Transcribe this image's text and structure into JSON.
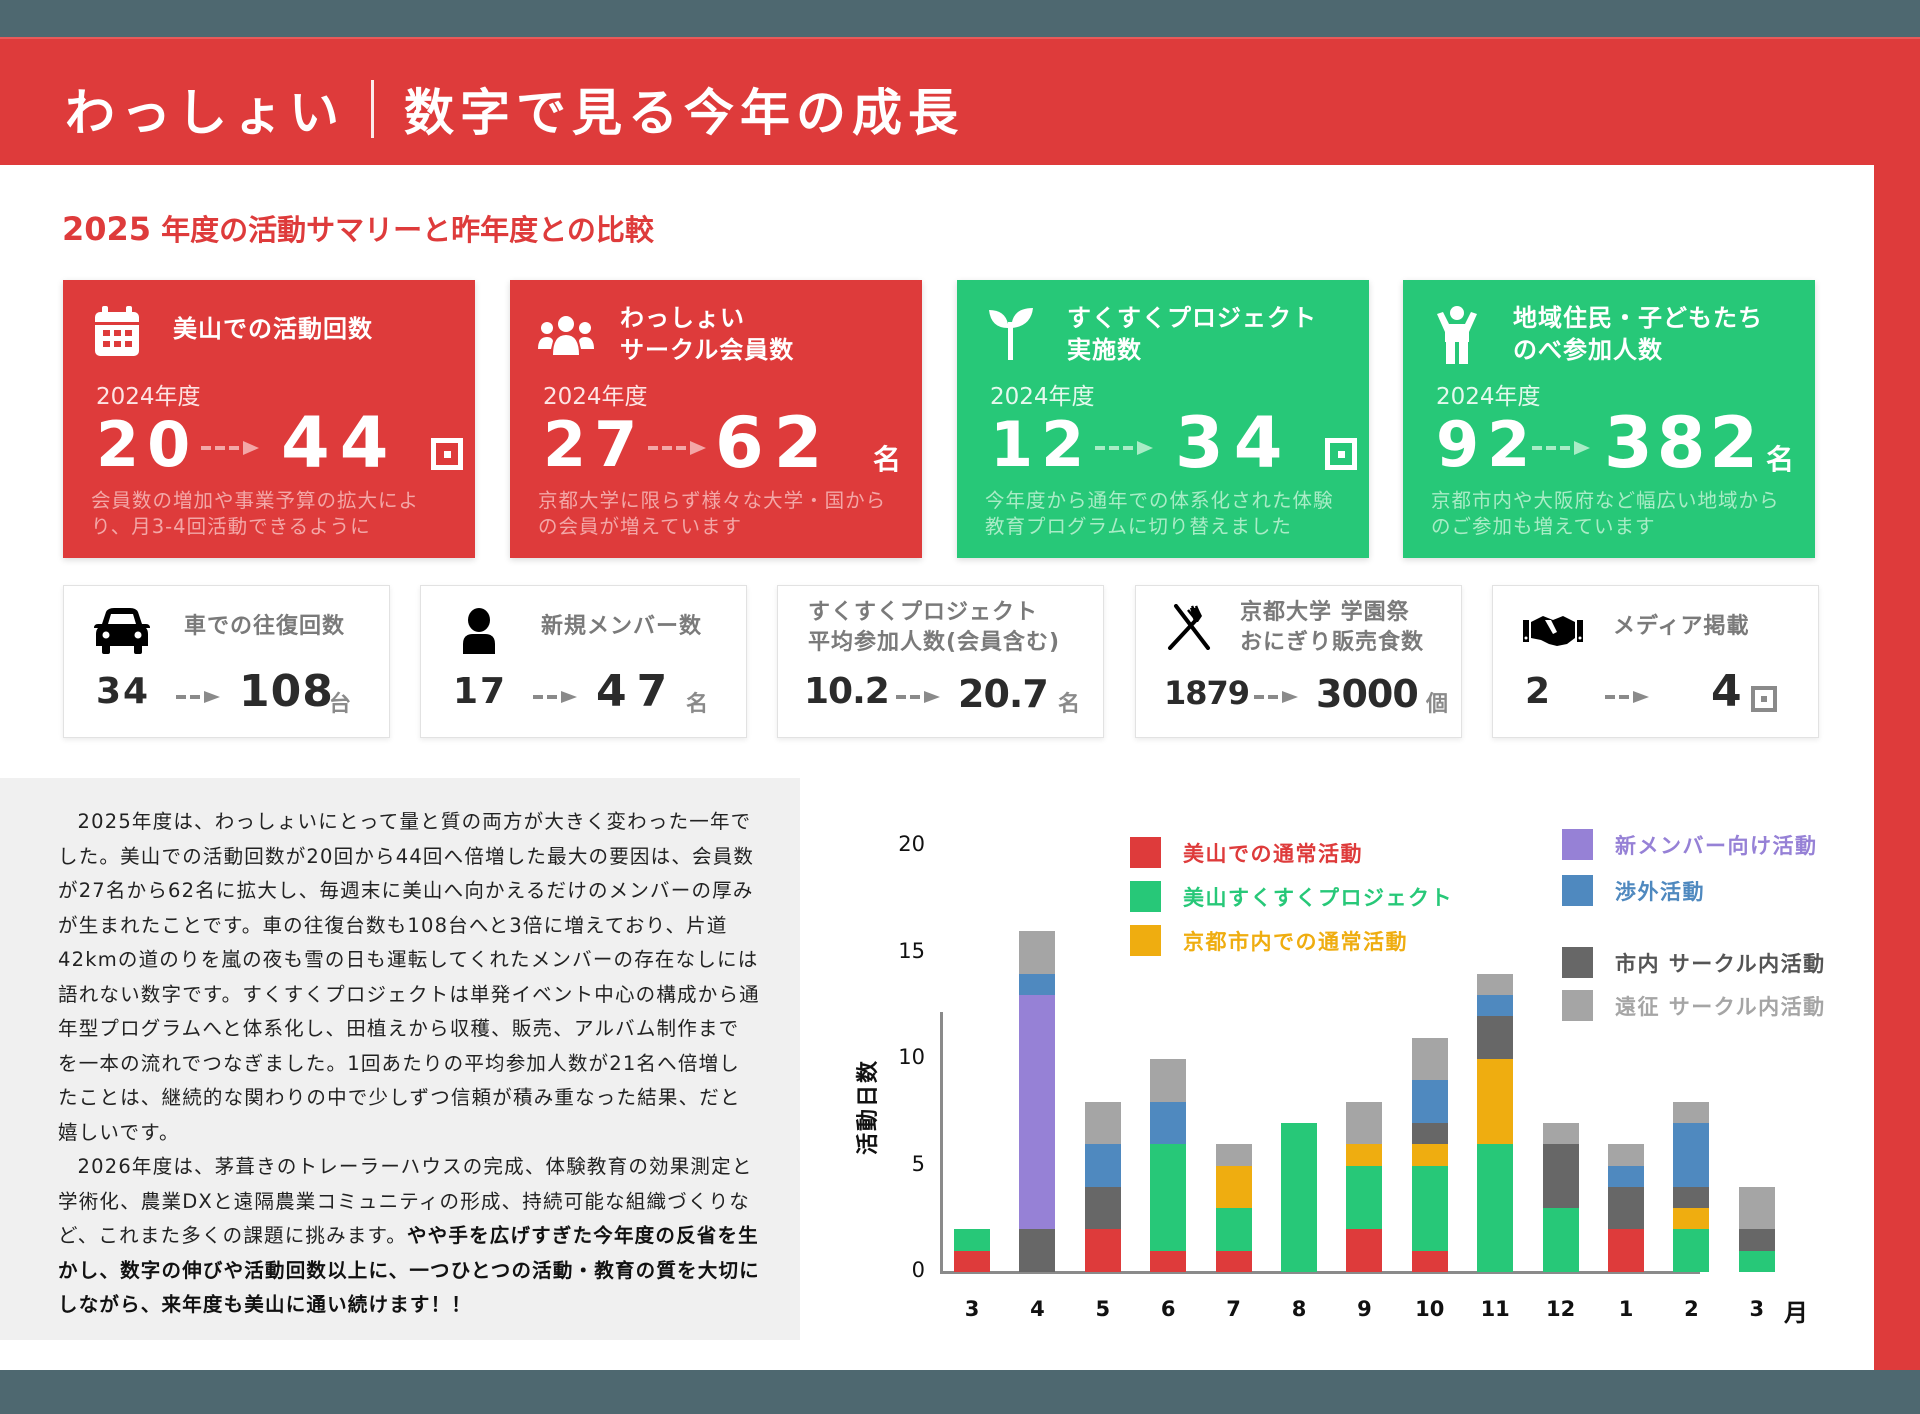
{
  "header": {
    "brand": "わっしょい",
    "title": "数字で見る今年の成長"
  },
  "subtitle": {
    "year": "2025",
    "text": " 年度の活動サマリーと昨年度との比較"
  },
  "big_cards": [
    {
      "icon": "calendar-icon",
      "title": "美山での活動回数",
      "prev_label": "2024年度",
      "old": "20",
      "new": "44",
      "unit": "回",
      "note": "会員数の増加や事業予算の拡大により、月3-4回活動できるように",
      "color": "red"
    },
    {
      "icon": "users-icon",
      "title_line1": "わっしょい",
      "title_line2": "サークル会員数",
      "prev_label": "2024年度",
      "old": "27",
      "new": "62",
      "unit": "名",
      "note": "京都大学に限らず様々な大学・国からの会員が増えています",
      "color": "red"
    },
    {
      "icon": "sprout-icon",
      "title_line1": "すくすくプロジェクト",
      "title_line2": "実施数",
      "prev_label": "2024年度",
      "old": "12",
      "new": "34",
      "unit": "回",
      "note": "今年度から通年での体系化された体験教育プログラムに切り替えました",
      "color": "green"
    },
    {
      "icon": "child-icon",
      "title_line1": "地域住民・子どもたち",
      "title_line2": "のべ参加人数",
      "prev_label": "2024年度",
      "old": "92",
      "new": "382",
      "unit": "名",
      "note": "京都市内や大阪府など幅広い地域からのご参加も増えています",
      "color": "green"
    }
  ],
  "small_cards": [
    {
      "icon": "car-icon",
      "title": "車での往復回数",
      "old": "34",
      "new": "108",
      "unit": "台"
    },
    {
      "icon": "person-icon",
      "title": "新規メンバー数",
      "old": "17",
      "new": "47",
      "unit": "名"
    },
    {
      "icon": "",
      "title_line1": "すくすくプロジェクト",
      "title_line2": "平均参加人数(会員含む)",
      "old": "10.2",
      "new": "20.7",
      "unit": "名"
    },
    {
      "icon": "utensils-icon",
      "title_line1": "京都大学 学園祭",
      "title_line2": "おにぎり販売食数",
      "old": "1879",
      "new": "3000",
      "unit": "個"
    },
    {
      "icon": "handshake-icon",
      "title": "メディア掲載",
      "old": "2",
      "new": "4",
      "unit": "回"
    }
  ],
  "essay": {
    "p1": "2025年度は、わっしょいにとって量と質の両方が大きく変わった一年でした。美山での活動回数が20回から44回へ倍増した最大の要因は、会員数が27名から62名に拡大し、毎週末に美山へ向かえるだけのメンバーの厚みが生まれたことです。車の往復台数も108台へと3倍に増えており、片道42kmの道のりを嵐の夜も雪の日も運転してくれたメンバーの存在なしには語れない数字です。すくすくプロジェクトは単発イベント中心の構成から通年型プログラムへと体系化し、田植えから収穫、販売、アルバム制作までを一本の流れでつなぎました。1回あたりの平均参加人数が21名へ倍増したことは、継続的な関わりの中で少しずつ信頼が積み重なった結果、だと嬉しいです。",
    "p2_normal": "2026年度は、茅葺きのトレーラーハウスの完成、体験教育の効果測定と学術化、農業DXと遠隔農業コミュニティの形成、持続可能な組織づくりなど、これまた多くの課題に挑みます。",
    "p2_bold": "やや手を広げすぎた今年度の反省を生かし、数字の伸びや活動回数以上に、一つひとつの活動・教育の質を大切にしながら、来年度も美山に通い続けます！！"
  },
  "colors": {
    "red": "#de3b3b",
    "green": "#27c878",
    "orange": "#efad10",
    "purple": "#9681d6",
    "blue": "#4f89bf",
    "dark_grey": "#676767",
    "light_grey": "#a5a5a5"
  },
  "chart_data": {
    "type": "bar",
    "stacked": true,
    "title": "",
    "xlabel": "月",
    "ylabel": "活動日数",
    "ylim": [
      0,
      20
    ],
    "yticks": [
      0,
      5,
      10,
      15,
      20
    ],
    "categories": [
      "3",
      "4",
      "5",
      "6",
      "7",
      "8",
      "9",
      "10",
      "11",
      "12",
      "1",
      "2",
      "3"
    ],
    "series": [
      {
        "name": "美山での通常活動",
        "color": "#de3b3b",
        "values": [
          1,
          0,
          2,
          1,
          1,
          0,
          2,
          1,
          0,
          0,
          2,
          0,
          0
        ]
      },
      {
        "name": "美山すくすくプロジェクト",
        "color": "#27c878",
        "values": [
          1,
          0,
          0,
          5,
          2,
          7,
          3,
          4,
          6,
          3,
          0,
          2,
          1
        ]
      },
      {
        "name": "京都市内での通常活動",
        "color": "#efad10",
        "values": [
          0,
          0,
          0,
          0,
          2,
          0,
          1,
          1,
          4,
          0,
          0,
          1,
          0
        ]
      },
      {
        "name": "市内 サークル内活動",
        "color": "#676767",
        "values": [
          0,
          2,
          2,
          0,
          0,
          0,
          0,
          1,
          2,
          3,
          2,
          1,
          1
        ]
      },
      {
        "name": "新メンバー向け活動",
        "color": "#9681d6",
        "values": [
          0,
          11,
          0,
          0,
          0,
          0,
          0,
          0,
          0,
          0,
          0,
          0,
          0
        ]
      },
      {
        "name": "渉外活動",
        "color": "#4f89bf",
        "values": [
          0,
          1,
          2,
          2,
          0,
          0,
          0,
          2,
          1,
          0,
          1,
          3,
          0
        ]
      },
      {
        "name": "遠征 サークル内活動",
        "color": "#a5a5a5",
        "values": [
          0,
          2,
          2,
          2,
          1,
          0,
          2,
          2,
          1,
          1,
          1,
          1,
          2
        ]
      }
    ],
    "legend_position": "top-right",
    "grid": false
  }
}
